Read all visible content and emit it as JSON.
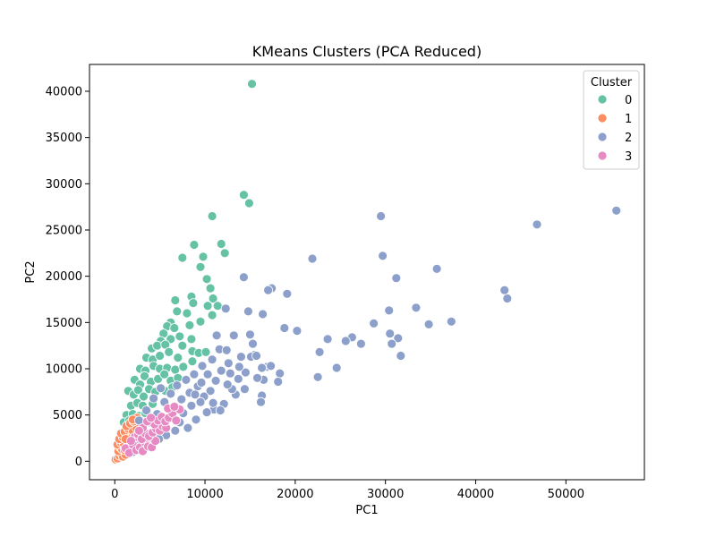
{
  "chart_data": {
    "type": "scatter",
    "title": "KMeans Clusters (PCA Reduced)",
    "xlabel": "PC1",
    "ylabel": "PC2",
    "xlim": [
      -2800,
      58700
    ],
    "ylim": [
      -2000,
      42900
    ],
    "xticks": [
      0,
      10000,
      20000,
      30000,
      40000,
      50000
    ],
    "yticks": [
      0,
      5000,
      10000,
      15000,
      20000,
      25000,
      30000,
      35000,
      40000
    ],
    "grid": false,
    "legend": {
      "title": "Cluster",
      "placement": "top-right"
    },
    "series": [
      {
        "name": "0",
        "color": "#66c2a5",
        "points": [
          [
            15200,
            40800
          ],
          [
            14300,
            28800
          ],
          [
            14900,
            27900
          ],
          [
            10800,
            26500
          ],
          [
            8800,
            23400
          ],
          [
            11800,
            23500
          ],
          [
            12200,
            22500
          ],
          [
            9800,
            22100
          ],
          [
            7500,
            22000
          ],
          [
            9500,
            21000
          ],
          [
            10200,
            19700
          ],
          [
            10600,
            18700
          ],
          [
            8500,
            17800
          ],
          [
            10900,
            17600
          ],
          [
            6700,
            17400
          ],
          [
            8700,
            17100
          ],
          [
            10300,
            16800
          ],
          [
            11400,
            16800
          ],
          [
            6900,
            16200
          ],
          [
            8000,
            16000
          ],
          [
            10800,
            15800
          ],
          [
            9500,
            15100
          ],
          [
            6200,
            15000
          ],
          [
            5800,
            14600
          ],
          [
            5400,
            13800
          ],
          [
            6600,
            14400
          ],
          [
            8300,
            14700
          ],
          [
            5100,
            13000
          ],
          [
            6200,
            13200
          ],
          [
            7200,
            13500
          ],
          [
            4100,
            12200
          ],
          [
            4700,
            12500
          ],
          [
            5600,
            12600
          ],
          [
            7500,
            12500
          ],
          [
            8500,
            13200
          ],
          [
            3500,
            11200
          ],
          [
            4200,
            11000
          ],
          [
            5000,
            11400
          ],
          [
            6000,
            11800
          ],
          [
            7000,
            11200
          ],
          [
            8600,
            11900
          ],
          [
            9300,
            11700
          ],
          [
            10100,
            11800
          ],
          [
            2800,
            10000
          ],
          [
            3400,
            9800
          ],
          [
            4300,
            10300
          ],
          [
            5000,
            10000
          ],
          [
            5800,
            10100
          ],
          [
            6700,
            9900
          ],
          [
            7600,
            10200
          ],
          [
            8600,
            10800
          ],
          [
            2200,
            8800
          ],
          [
            2800,
            8300
          ],
          [
            3300,
            9200
          ],
          [
            4000,
            8600
          ],
          [
            4800,
            8900
          ],
          [
            5500,
            9400
          ],
          [
            6200,
            8700
          ],
          [
            7000,
            9000
          ],
          [
            1500,
            7600
          ],
          [
            2100,
            7200
          ],
          [
            2600,
            7700
          ],
          [
            3200,
            7000
          ],
          [
            3800,
            7800
          ],
          [
            4500,
            7500
          ],
          [
            5600,
            7600
          ],
          [
            6400,
            8000
          ],
          [
            1800,
            6000
          ],
          [
            2500,
            6300
          ],
          [
            3100,
            6000
          ],
          [
            3600,
            5500
          ],
          [
            4200,
            6200
          ],
          [
            1300,
            5000
          ],
          [
            2000,
            5100
          ],
          [
            2700,
            4900
          ],
          [
            3400,
            5200
          ],
          [
            1000,
            4200
          ],
          [
            1600,
            4400
          ],
          [
            2300,
            4000
          ]
        ]
      },
      {
        "name": "1",
        "color": "#fc8d62",
        "points": [
          [
            100,
            200
          ],
          [
            300,
            300
          ],
          [
            500,
            600
          ],
          [
            700,
            900
          ],
          [
            900,
            500
          ],
          [
            1200,
            700
          ],
          [
            400,
            1100
          ],
          [
            600,
            1500
          ],
          [
            800,
            1300
          ],
          [
            1100,
            1200
          ],
          [
            300,
            1800
          ],
          [
            700,
            2000
          ],
          [
            1000,
            1900
          ],
          [
            1400,
            1600
          ],
          [
            1600,
            2100
          ],
          [
            500,
            2400
          ],
          [
            900,
            2600
          ],
          [
            1300,
            2800
          ],
          [
            1800,
            2500
          ],
          [
            2200,
            2700
          ],
          [
            700,
            3000
          ],
          [
            1100,
            3200
          ],
          [
            1500,
            3500
          ],
          [
            2000,
            3300
          ],
          [
            2400,
            3600
          ],
          [
            1300,
            3800
          ],
          [
            1700,
            4100
          ],
          [
            2100,
            4300
          ],
          [
            2500,
            4700
          ],
          [
            2000,
            4500
          ],
          [
            2700,
            3100
          ],
          [
            3000,
            3400
          ],
          [
            1900,
            1600
          ],
          [
            2300,
            2100
          ],
          [
            1200,
            2400
          ]
        ]
      },
      {
        "name": "2",
        "color": "#8da0cb",
        "points": [
          [
            55600,
            27100
          ],
          [
            46800,
            25600
          ],
          [
            43500,
            17600
          ],
          [
            43200,
            18500
          ],
          [
            37300,
            15100
          ],
          [
            35700,
            20800
          ],
          [
            34800,
            14800
          ],
          [
            33400,
            16600
          ],
          [
            31200,
            19800
          ],
          [
            31700,
            11400
          ],
          [
            31400,
            13300
          ],
          [
            30500,
            13800
          ],
          [
            30700,
            12700
          ],
          [
            30400,
            16300
          ],
          [
            29700,
            22200
          ],
          [
            29500,
            26500
          ],
          [
            28700,
            14900
          ],
          [
            27300,
            12700
          ],
          [
            26300,
            13400
          ],
          [
            25600,
            13000
          ],
          [
            24600,
            10100
          ],
          [
            23600,
            13200
          ],
          [
            22700,
            11800
          ],
          [
            22500,
            9100
          ],
          [
            21900,
            21900
          ],
          [
            20200,
            14100
          ],
          [
            19100,
            18100
          ],
          [
            18800,
            14400
          ],
          [
            17400,
            18700
          ],
          [
            17000,
            18500
          ],
          [
            16900,
            10200
          ],
          [
            16500,
            8800
          ],
          [
            16400,
            15900
          ],
          [
            16300,
            10100
          ],
          [
            16300,
            7100
          ],
          [
            16200,
            6400
          ],
          [
            15500,
            11500
          ],
          [
            15300,
            12700
          ],
          [
            15100,
            11300
          ],
          [
            15000,
            13700
          ],
          [
            14800,
            16200
          ],
          [
            14400,
            7800
          ],
          [
            14300,
            19900
          ],
          [
            14000,
            11300
          ],
          [
            13700,
            8900
          ],
          [
            13400,
            7200
          ],
          [
            13200,
            13600
          ],
          [
            12600,
            10600
          ],
          [
            12300,
            16500
          ],
          [
            12100,
            6200
          ],
          [
            11600,
            12100
          ],
          [
            11300,
            13600
          ],
          [
            11200,
            8700
          ],
          [
            11000,
            5600
          ],
          [
            10800,
            11000
          ],
          [
            10600,
            7600
          ],
          [
            10300,
            9400
          ],
          [
            10200,
            5300
          ],
          [
            9900,
            7000
          ],
          [
            9700,
            10300
          ],
          [
            9500,
            6400
          ],
          [
            9200,
            8100
          ],
          [
            9000,
            4500
          ],
          [
            8800,
            9400
          ],
          [
            8500,
            6000
          ],
          [
            8300,
            7400
          ],
          [
            8100,
            3600
          ],
          [
            7900,
            8800
          ],
          [
            7600,
            5200
          ],
          [
            7400,
            6700
          ],
          [
            7200,
            4200
          ],
          [
            6900,
            8200
          ],
          [
            6700,
            3300
          ],
          [
            6400,
            5800
          ],
          [
            6200,
            7300
          ],
          [
            6000,
            4600
          ],
          [
            5700,
            2800
          ],
          [
            5500,
            6400
          ],
          [
            5300,
            3900
          ],
          [
            5100,
            7900
          ],
          [
            4900,
            2400
          ],
          [
            4700,
            5100
          ],
          [
            4500,
            3300
          ],
          [
            4300,
            6800
          ],
          [
            4100,
            1900
          ],
          [
            3900,
            4200
          ],
          [
            3700,
            2800
          ],
          [
            3500,
            5500
          ],
          [
            3300,
            1500
          ],
          [
            3100,
            3500
          ],
          [
            2900,
            2200
          ],
          [
            2700,
            4400
          ],
          [
            2500,
            1300
          ],
          [
            2300,
            2600
          ],
          [
            2000,
            1000
          ],
          [
            1800,
            1800
          ],
          [
            12800,
            9500
          ],
          [
            13000,
            7800
          ],
          [
            11800,
            9800
          ],
          [
            12500,
            8300
          ],
          [
            10900,
            6300
          ],
          [
            11700,
            5500
          ],
          [
            9600,
            8500
          ],
          [
            8900,
            7200
          ],
          [
            14500,
            9600
          ],
          [
            15800,
            9000
          ],
          [
            13800,
            10200
          ],
          [
            18300,
            9500
          ],
          [
            18100,
            8600
          ],
          [
            17300,
            10300
          ],
          [
            15700,
            11400
          ],
          [
            12400,
            12000
          ]
        ]
      },
      {
        "name": "3",
        "color": "#e78ac3",
        "points": [
          [
            1200,
            1400
          ],
          [
            1600,
            900
          ],
          [
            2000,
            1800
          ],
          [
            2400,
            1200
          ],
          [
            2800,
            1500
          ],
          [
            3100,
            1100
          ],
          [
            3400,
            2000
          ],
          [
            3700,
            1600
          ],
          [
            4100,
            1500
          ],
          [
            4500,
            2200
          ],
          [
            2200,
            2600
          ],
          [
            2600,
            2900
          ],
          [
            3000,
            2400
          ],
          [
            3400,
            3000
          ],
          [
            3800,
            2700
          ],
          [
            4200,
            3100
          ],
          [
            4600,
            3500
          ],
          [
            5000,
            3300
          ],
          [
            5300,
            3800
          ],
          [
            5700,
            3600
          ],
          [
            4400,
            4000
          ],
          [
            4800,
            4400
          ],
          [
            5200,
            4800
          ],
          [
            5600,
            4300
          ],
          [
            6000,
            4700
          ],
          [
            6400,
            5200
          ],
          [
            6800,
            4400
          ],
          [
            7200,
            5600
          ],
          [
            5900,
            5700
          ],
          [
            6600,
            5900
          ],
          [
            3100,
            3600
          ],
          [
            3600,
            4300
          ],
          [
            4000,
            4700
          ],
          [
            2700,
            3300
          ],
          [
            1800,
            2200
          ]
        ]
      }
    ]
  }
}
